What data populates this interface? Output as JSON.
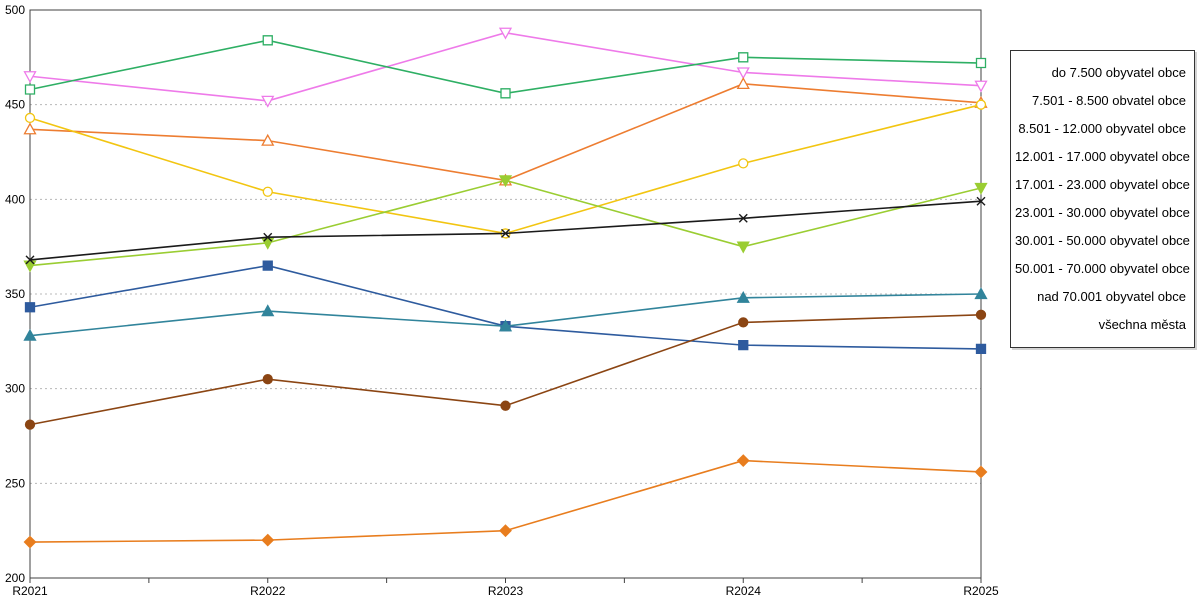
{
  "chart_data": {
    "type": "line",
    "title": "",
    "xlabel": "",
    "ylabel": "",
    "x": [
      "R2021",
      "R2022",
      "R2023",
      "R2024",
      "R2025"
    ],
    "ylim": [
      200,
      500
    ],
    "yticks": [
      200,
      250,
      300,
      350,
      400,
      450,
      500
    ],
    "grid": "horizontal-dotted",
    "legend_position": "right",
    "series": [
      {
        "name": "do 7.500 obyvatel obce",
        "color": "#2e5b9e",
        "marker": "square",
        "fill": "filled",
        "values": [
          343,
          365,
          333,
          323,
          321
        ]
      },
      {
        "name": "7.501 - 8.500 obvatel obce",
        "color": "#8b4513",
        "marker": "circle",
        "fill": "filled",
        "values": [
          281,
          305,
          291,
          335,
          339
        ]
      },
      {
        "name": "8.501 - 12.000 obyvatel obce",
        "color": "#31849b",
        "marker": "triangle-up",
        "fill": "filled",
        "values": [
          328,
          341,
          333,
          348,
          350
        ]
      },
      {
        "name": "12.001 - 17.000 obyvatel obce",
        "color": "#e87d1e",
        "marker": "diamond",
        "fill": "filled",
        "values": [
          219,
          220,
          225,
          262,
          256
        ]
      },
      {
        "name": "17.001 - 23.000 obyvatel obce",
        "color": "#ee7ae9",
        "marker": "triangle-down",
        "fill": "open",
        "values": [
          465,
          452,
          488,
          467,
          460
        ]
      },
      {
        "name": "23.001 - 30.000 obyvatel obce",
        "color": "#ed7d31",
        "marker": "triangle-up",
        "fill": "open",
        "values": [
          437,
          431,
          410,
          461,
          451
        ]
      },
      {
        "name": "30.001 - 50.000 obyvatel obce",
        "color": "#2eaf64",
        "marker": "square",
        "fill": "open",
        "values": [
          458,
          484,
          456,
          475,
          472
        ]
      },
      {
        "name": "50.001 - 70.000 obyvatel obce",
        "color": "#f2c511",
        "marker": "circle",
        "fill": "open",
        "values": [
          443,
          404,
          382,
          419,
          450
        ]
      },
      {
        "name": "nad 70.001 obyvatel obce",
        "color": "#9acd32",
        "marker": "triangle-down",
        "fill": "filled",
        "values": [
          365,
          377,
          410,
          375,
          406
        ]
      },
      {
        "name": "všechna města",
        "color": "#1a1a1a",
        "marker": "x",
        "fill": "line",
        "values": [
          368,
          380,
          382,
          390,
          399
        ]
      }
    ],
    "plot_colors": {
      "gridline": "#b8b8b8",
      "border": "#404040",
      "background": "#ffffff"
    }
  }
}
